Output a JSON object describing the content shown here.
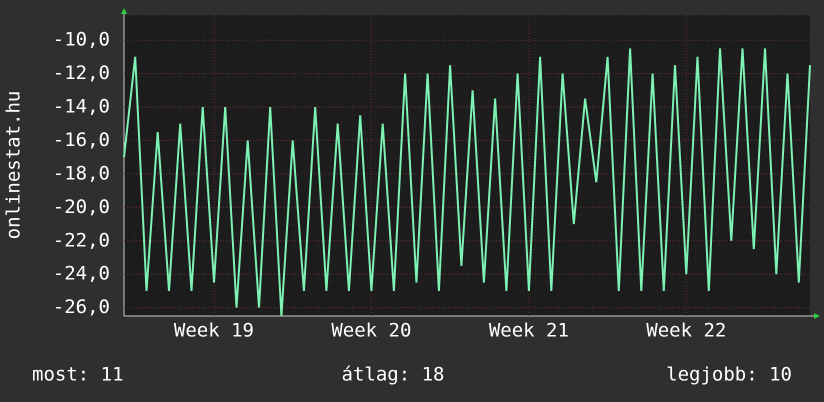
{
  "chart_data": {
    "type": "line",
    "y_label": "onlinestat.hu",
    "categories": [
      null,
      null,
      null,
      null,
      null,
      null,
      null,
      null,
      "Week 19",
      null,
      null,
      null,
      null,
      null,
      null,
      null,
      null,
      null,
      null,
      null,
      null,
      null,
      "Week 20",
      null,
      null,
      null,
      null,
      null,
      null,
      null,
      null,
      null,
      null,
      null,
      null,
      null,
      "Week 21",
      null,
      null,
      null,
      null,
      null,
      null,
      null,
      null,
      null,
      null,
      null,
      null,
      null,
      "Week 22",
      null,
      null,
      null,
      null,
      null,
      null,
      null,
      null,
      null,
      null,
      null
    ],
    "values": [
      -17,
      -11,
      -25,
      -15.5,
      -25,
      -15,
      -25,
      -14,
      -24.5,
      -14,
      -26,
      -16,
      -26,
      -14,
      -26.5,
      -16,
      -25,
      -14,
      -25,
      -15,
      -25,
      -14.5,
      -25,
      -15,
      -25,
      -12,
      -24.5,
      -12,
      -25,
      -11.5,
      -23.5,
      -13,
      -24.5,
      -13.5,
      -25,
      -12,
      -25,
      -11,
      -25,
      -12,
      -21,
      -13.5,
      -18.5,
      -11,
      -25,
      -10.5,
      -25,
      -12,
      -25,
      -11.5,
      -24,
      -11,
      -25,
      -10.5,
      -22,
      -10.5,
      -22.5,
      -10.5,
      -24,
      -12,
      -24.5,
      -11.5
    ],
    "color": "#7df2b4",
    "ylim": [
      -26.5,
      -8.5
    ],
    "yticks": [
      {
        "value": -26,
        "label": "-26,0"
      },
      {
        "value": -24,
        "label": "-24,0"
      },
      {
        "value": -22,
        "label": "-22,0"
      },
      {
        "value": -20,
        "label": "-20,0"
      },
      {
        "value": -18,
        "label": "-18,0"
      },
      {
        "value": -16,
        "label": "-16,0"
      },
      {
        "value": -14,
        "label": "-14,0"
      },
      {
        "value": -12,
        "label": "-12,0"
      },
      {
        "value": -10,
        "label": "-10,0"
      }
    ],
    "grid": true,
    "stats": [
      "most: 11",
      "átlag: 18",
      "legjobb: 10"
    ]
  }
}
